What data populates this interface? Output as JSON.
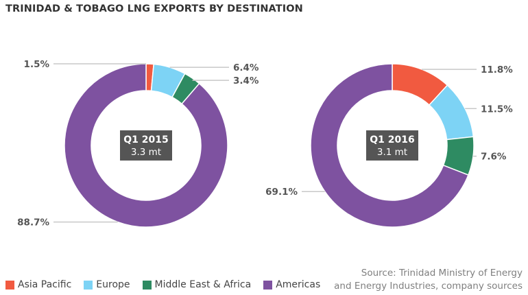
{
  "title": "TRINIDAD & TOBAGO LNG EXPORTS BY DESTINATION",
  "colors": {
    "asia_pacific": "#f15a40",
    "europe": "#7dd3f5",
    "middle_east_africa": "#2e8b62",
    "americas": "#7e52a0",
    "leader_line": "#c8c8c8",
    "center_box": "#555555"
  },
  "chart_data": [
    {
      "type": "pie",
      "hole": true,
      "title": "Q1 2015",
      "subtitle": "3.3 mt",
      "categories": [
        "Asia Pacific",
        "Europe",
        "Middle East & Africa",
        "Americas"
      ],
      "values": [
        1.5,
        6.4,
        3.4,
        88.7
      ],
      "labels": [
        "1.5%",
        "6.4%",
        "3.4%",
        "88.7%"
      ],
      "label_sides": [
        "left",
        "right",
        "right",
        "left"
      ]
    },
    {
      "type": "pie",
      "hole": true,
      "title": "Q1 2016",
      "subtitle": "3.1 mt",
      "categories": [
        "Asia Pacific",
        "Europe",
        "Middle East & Africa",
        "Americas"
      ],
      "values": [
        11.8,
        11.5,
        7.6,
        69.1
      ],
      "labels": [
        "11.8%",
        "11.5%",
        "7.6%",
        "69.1%"
      ],
      "label_sides": [
        "right",
        "right",
        "right",
        "left"
      ]
    }
  ],
  "legend": [
    {
      "label": "Asia Pacific",
      "color": "#f15a40"
    },
    {
      "label": "Europe",
      "color": "#7dd3f5"
    },
    {
      "label": "Middle East & Africa",
      "color": "#2e8b62"
    },
    {
      "label": "Americas",
      "color": "#7e52a0"
    }
  ],
  "source": {
    "line1": "Source: Trinidad Ministry of Energy",
    "line2": "and Energy Industries, company sources"
  }
}
